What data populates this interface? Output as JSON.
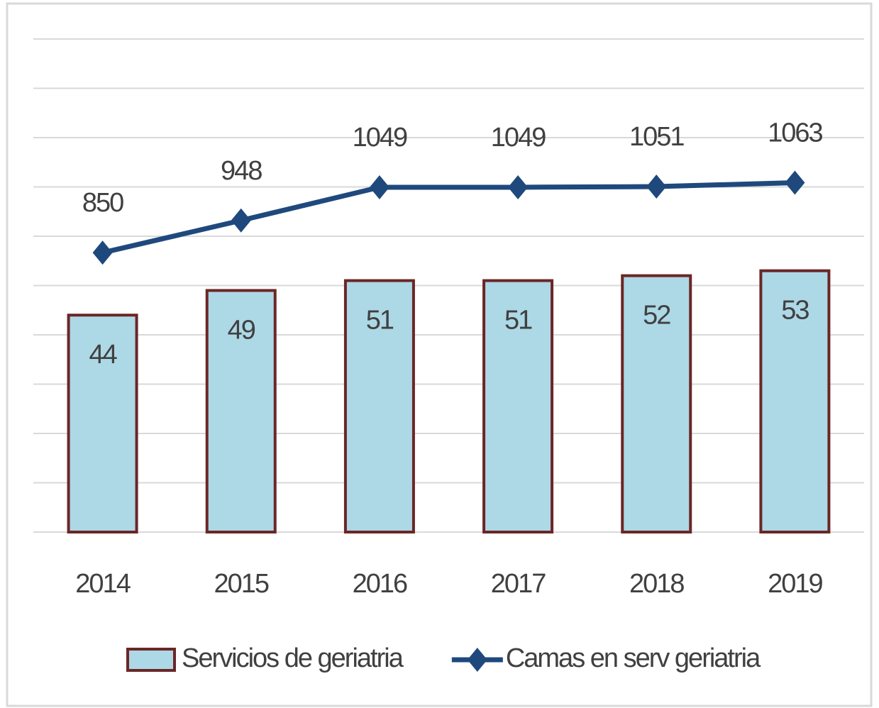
{
  "chart_data": {
    "type": "bar-line",
    "categories": [
      "2014",
      "2015",
      "2016",
      "2017",
      "2018",
      "2019"
    ],
    "series": [
      {
        "name": "Servicios de geriatria",
        "type": "bar",
        "color": "#add8e6",
        "edge_color": "#6b2626",
        "values": [
          44,
          49,
          51,
          51,
          52,
          53
        ]
      },
      {
        "name": "Camas en serv geriatria",
        "type": "line",
        "axis": "y2",
        "color": "#1f497d",
        "values": [
          850,
          948,
          1049,
          1049,
          1051,
          1063
        ]
      }
    ],
    "ylim": [
      0,
      100
    ],
    "yticks": [
      0,
      10,
      20,
      30,
      40,
      50,
      60,
      70,
      80,
      90,
      100
    ],
    "y2lim": [
      0,
      1500
    ],
    "show_tick_labels": false,
    "grid": true,
    "legend": "bottom"
  }
}
